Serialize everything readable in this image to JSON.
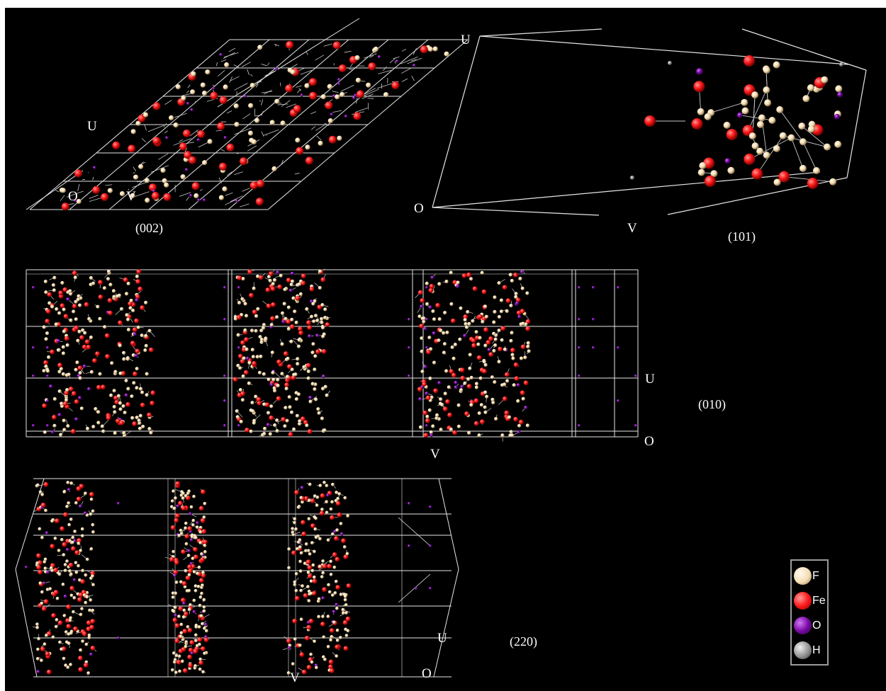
{
  "views": [
    {
      "id": "v002",
      "caption": "(002)",
      "axes": {
        "u": "U",
        "v": "V",
        "o": "O"
      }
    },
    {
      "id": "v101",
      "caption": "(101)",
      "axes": {
        "u": "U",
        "v": "V",
        "o": "O"
      }
    },
    {
      "id": "v010",
      "caption": "(010)",
      "axes": {
        "u": "U",
        "v": "V",
        "o": "O"
      }
    },
    {
      "id": "v220",
      "caption": "(220)",
      "axes": {
        "u": "U",
        "v": "V",
        "o": "O"
      }
    }
  ],
  "legend": {
    "items": [
      {
        "element": "F",
        "color": "#f5deb3"
      },
      {
        "element": "Fe",
        "color": "#ff1a1a"
      },
      {
        "element": "O",
        "color": "#7a0aa8"
      },
      {
        "element": "H",
        "color": "#9a9a9a"
      }
    ]
  },
  "colors": {
    "background": "#000000",
    "bond": "#c8c8c8",
    "cell_edge": "#e6e6e6",
    "F": "#f5deb3",
    "Fe": "#ff1a1a",
    "O": "#7a0aa8",
    "H": "#9a9a9a"
  }
}
